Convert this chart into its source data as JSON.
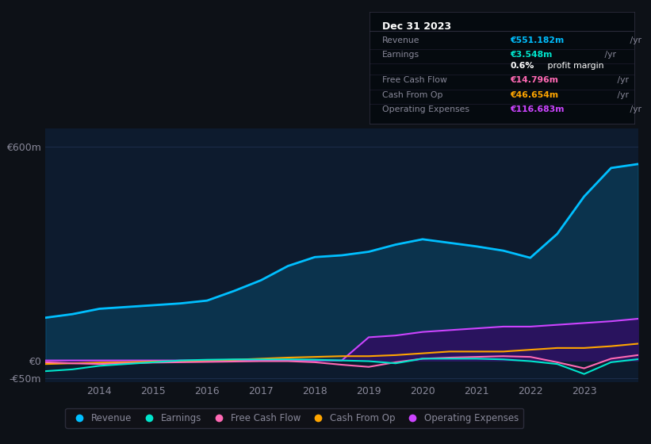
{
  "background_color": "#0d1117",
  "plot_bg_color": "#0d1b2e",
  "years": [
    2013.0,
    2013.5,
    2014.0,
    2014.5,
    2015.0,
    2015.5,
    2016.0,
    2016.5,
    2017.0,
    2017.5,
    2018.0,
    2018.5,
    2019.0,
    2019.5,
    2020.0,
    2020.5,
    2021.0,
    2021.5,
    2022.0,
    2022.5,
    2023.0,
    2023.5,
    2024.0
  ],
  "revenue": [
    120,
    130,
    145,
    150,
    155,
    160,
    168,
    195,
    225,
    265,
    290,
    295,
    305,
    325,
    340,
    330,
    320,
    308,
    288,
    355,
    460,
    540,
    551
  ],
  "earnings": [
    -30,
    -25,
    -15,
    -10,
    -5,
    0,
    2,
    3,
    3,
    3,
    2,
    0,
    -2,
    -8,
    5,
    5,
    5,
    3,
    -2,
    -10,
    -38,
    -5,
    3.5
  ],
  "free_cash_flow": [
    -5,
    -8,
    -10,
    -8,
    -6,
    -5,
    -4,
    -3,
    -2,
    -2,
    -5,
    -12,
    -18,
    -5,
    5,
    8,
    10,
    12,
    10,
    -5,
    -22,
    5,
    15
  ],
  "cash_from_op": [
    -10,
    -8,
    -6,
    -5,
    -3,
    -2,
    0,
    2,
    5,
    8,
    10,
    12,
    12,
    15,
    20,
    25,
    25,
    25,
    30,
    35,
    35,
    40,
    47
  ],
  "operating_expenses": [
    0,
    0,
    0,
    0,
    0,
    0,
    0,
    0,
    0,
    0,
    0,
    0,
    65,
    70,
    80,
    85,
    90,
    95,
    95,
    100,
    105,
    110,
    117
  ],
  "ylim": [
    -60,
    650
  ],
  "yticks": [
    -50,
    0,
    600
  ],
  "ytick_labels": [
    "-€50m",
    "€0",
    "€600m"
  ],
  "xticks": [
    2014,
    2015,
    2016,
    2017,
    2018,
    2019,
    2020,
    2021,
    2022,
    2023
  ],
  "revenue_color": "#00bfff",
  "earnings_color": "#00e5cc",
  "free_cash_flow_color": "#ff69b4",
  "cash_from_op_color": "#ffa500",
  "operating_expenses_color": "#cc44ff",
  "operating_expenses_fill": "#2d1060",
  "legend_items": [
    "Revenue",
    "Earnings",
    "Free Cash Flow",
    "Cash From Op",
    "Operating Expenses"
  ],
  "legend_colors": [
    "#00bfff",
    "#00e5cc",
    "#ff69b4",
    "#ffa500",
    "#cc44ff"
  ],
  "info_box": {
    "title": "Dec 31 2023",
    "rows": [
      {
        "label": "Revenue",
        "value": "€551.182m /yr",
        "value_color": "#00bfff"
      },
      {
        "label": "Earnings",
        "value": "€3.548m /yr",
        "value_color": "#00e5cc"
      },
      {
        "label": "",
        "value": "0.6% profit margin",
        "value_color": "#ffffff"
      },
      {
        "label": "Free Cash Flow",
        "value": "€14.796m /yr",
        "value_color": "#ff69b4"
      },
      {
        "label": "Cash From Op",
        "value": "€46.654m /yr",
        "value_color": "#ffa500"
      },
      {
        "label": "Operating Expenses",
        "value": "€116.683m /yr",
        "value_color": "#cc44ff"
      }
    ]
  },
  "grid_color": "#1e3050",
  "text_color": "#888899",
  "title_color": "#ffffff"
}
